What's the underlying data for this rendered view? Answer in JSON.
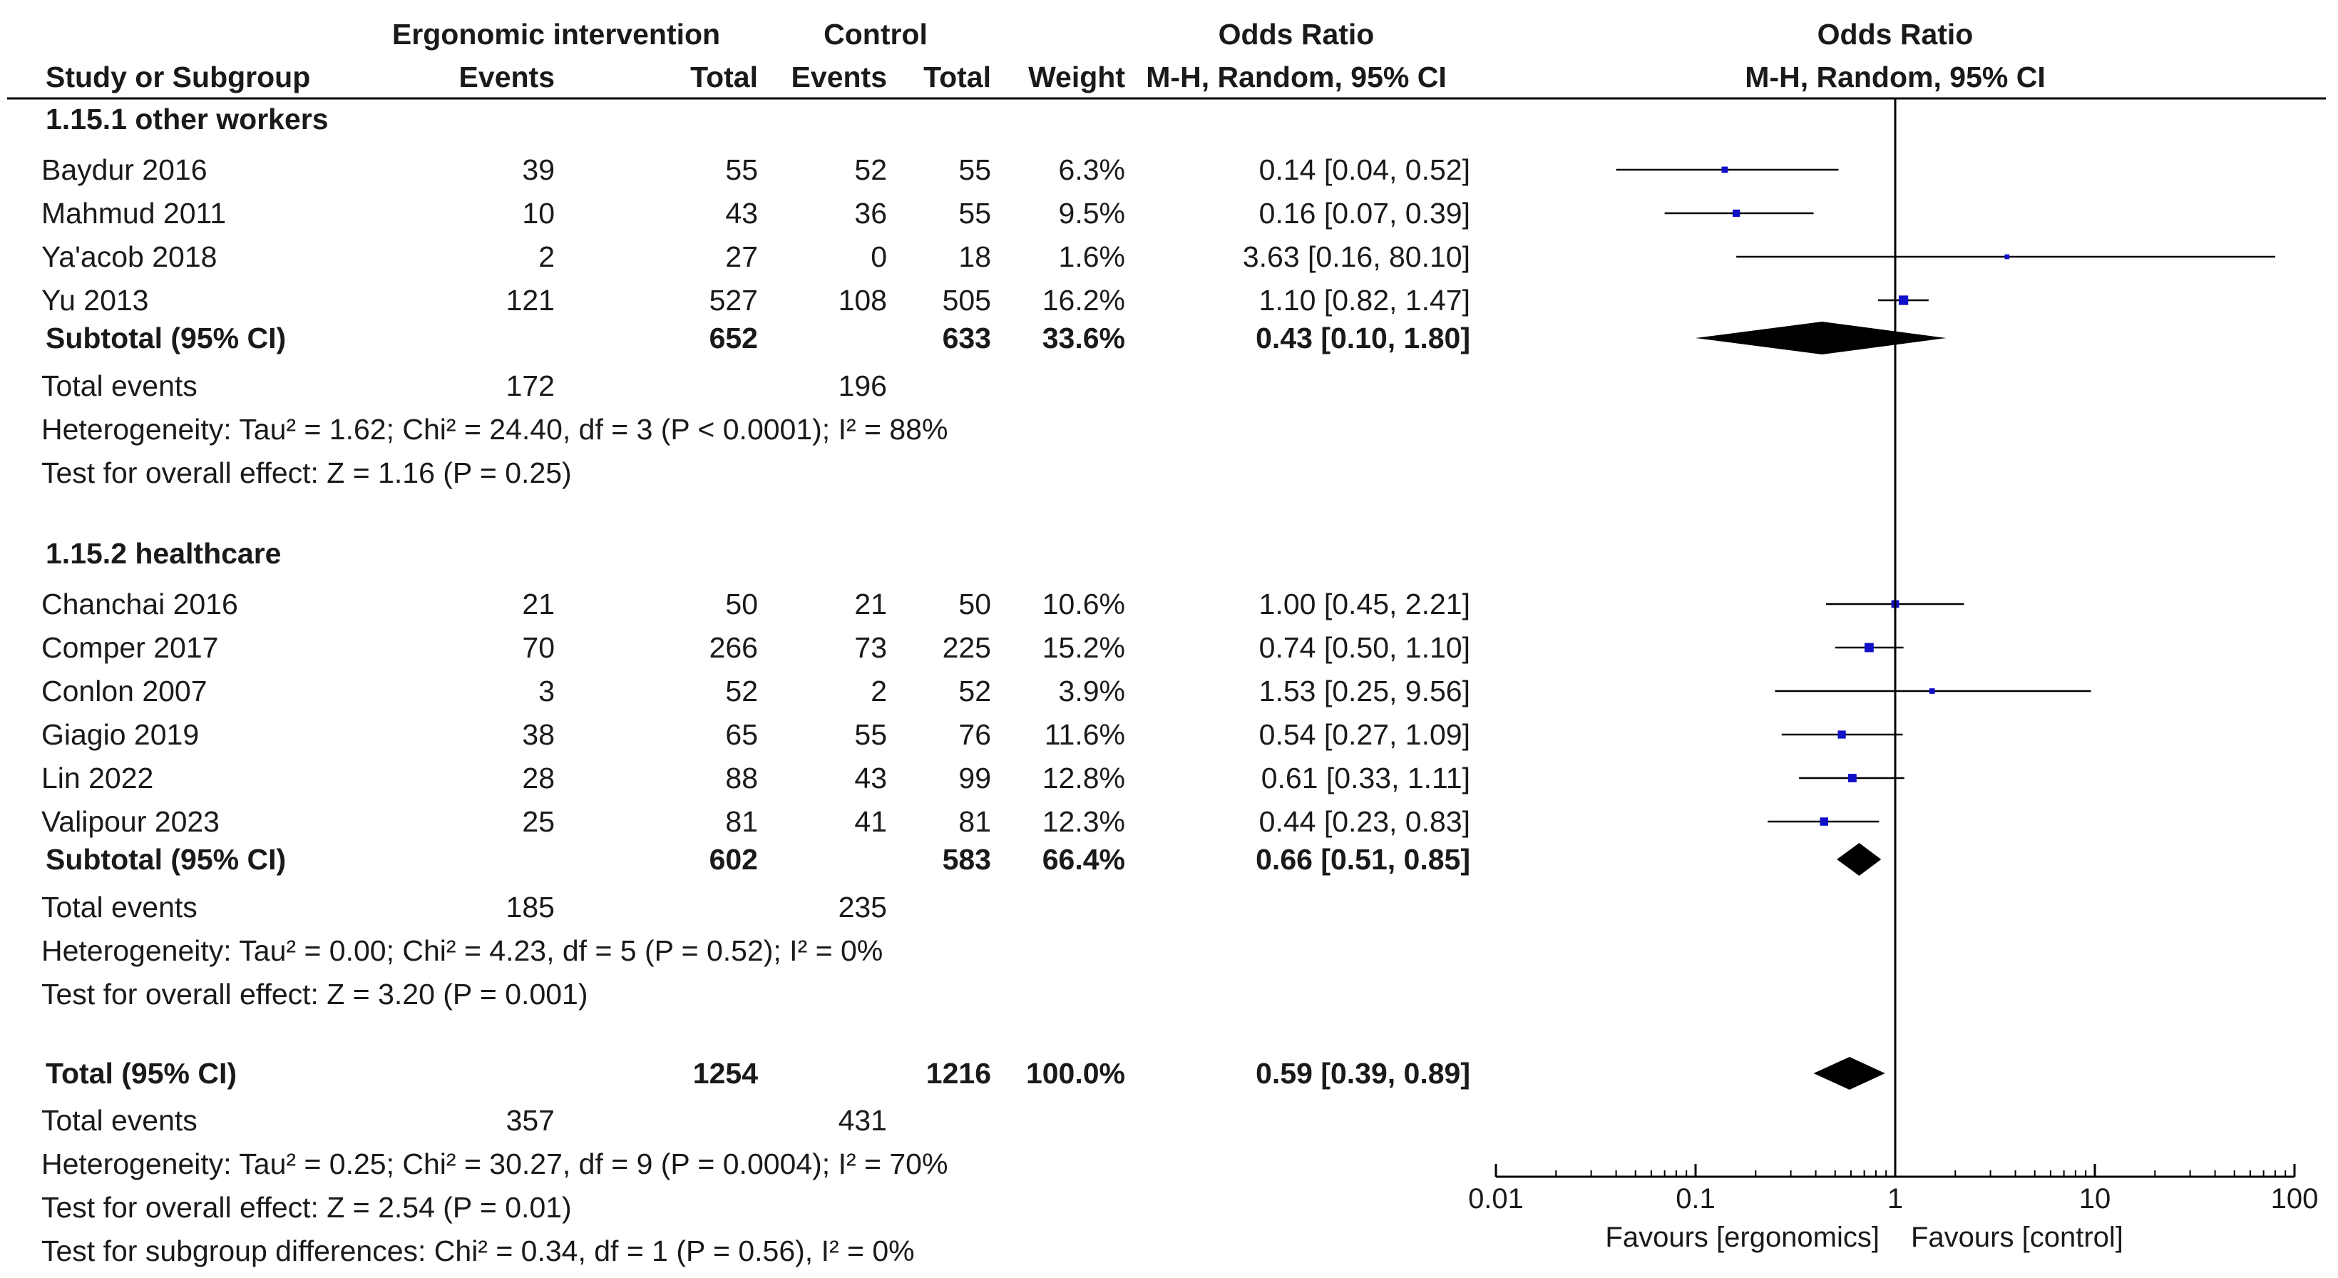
{
  "header": {
    "group_exp": "Ergonomic intervention",
    "group_ctrl": "Control",
    "or_title_table": "Odds Ratio",
    "or_title_plot": "Odds Ratio",
    "study_col": "Study or Subgroup",
    "events_exp": "Events",
    "total_exp": "Total",
    "events_ctrl": "Events",
    "total_ctrl": "Total",
    "weight": "Weight",
    "method_table": "M-H, Random, 95% CI",
    "method_plot": "M-H, Random, 95% CI"
  },
  "colors": {
    "study_marker": "#1010c8",
    "diamond": "#000000",
    "lines": "#000000"
  },
  "chart_data": {
    "type": "forest",
    "scale": "log",
    "xlim": [
      0.01,
      100
    ],
    "ticks": [
      {
        "value": 0.01,
        "label": "0.01"
      },
      {
        "value": 0.1,
        "label": "0.1"
      },
      {
        "value": 1,
        "label": "1"
      },
      {
        "value": 10,
        "label": "10"
      },
      {
        "value": 100,
        "label": "100"
      }
    ],
    "favours_left": "Favours [ergonomics]",
    "favours_right": "Favours [control]",
    "subgroups": [
      {
        "title": "1.15.1 other workers",
        "studies": [
          {
            "name": "Baydur 2016",
            "e_events": "39",
            "e_total": "55",
            "c_events": "52",
            "c_total": "55",
            "weight": "6.3%",
            "ci_text": "0.14 [0.04, 0.52]",
            "or": 0.14,
            "lo": 0.04,
            "hi": 0.52
          },
          {
            "name": "Mahmud 2011",
            "e_events": "10",
            "e_total": "43",
            "c_events": "36",
            "c_total": "55",
            "weight": "9.5%",
            "ci_text": "0.16 [0.07, 0.39]",
            "or": 0.16,
            "lo": 0.07,
            "hi": 0.39
          },
          {
            "name": "Ya'acob 2018",
            "e_events": "2",
            "e_total": "27",
            "c_events": "0",
            "c_total": "18",
            "weight": "1.6%",
            "ci_text": "3.63 [0.16, 80.10]",
            "or": 3.63,
            "lo": 0.16,
            "hi": 80.1
          },
          {
            "name": "Yu 2013",
            "e_events": "121",
            "e_total": "527",
            "c_events": "108",
            "c_total": "505",
            "weight": "16.2%",
            "ci_text": "1.10 [0.82, 1.47]",
            "or": 1.1,
            "lo": 0.82,
            "hi": 1.47
          }
        ],
        "subtotal": {
          "label": "Subtotal (95% CI)",
          "e_total": "652",
          "c_total": "633",
          "weight": "33.6%",
          "ci_text": "0.43 [0.10, 1.80]",
          "or": 0.43,
          "lo": 0.1,
          "hi": 1.8
        },
        "events": {
          "label": "Total events",
          "e": "172",
          "c": "196"
        },
        "heterogeneity": "Heterogeneity: Tau² = 1.62; Chi² = 24.40, df = 3 (P < 0.0001); I² = 88%",
        "overall": "Test for overall effect: Z = 1.16 (P = 0.25)"
      },
      {
        "title": "1.15.2 healthcare",
        "studies": [
          {
            "name": "Chanchai 2016",
            "e_events": "21",
            "e_total": "50",
            "c_events": "21",
            "c_total": "50",
            "weight": "10.6%",
            "ci_text": "1.00 [0.45, 2.21]",
            "or": 1.0,
            "lo": 0.45,
            "hi": 2.21
          },
          {
            "name": "Comper 2017",
            "e_events": "70",
            "e_total": "266",
            "c_events": "73",
            "c_total": "225",
            "weight": "15.2%",
            "ci_text": "0.74 [0.50, 1.10]",
            "or": 0.74,
            "lo": 0.5,
            "hi": 1.1
          },
          {
            "name": "Conlon 2007",
            "e_events": "3",
            "e_total": "52",
            "c_events": "2",
            "c_total": "52",
            "weight": "3.9%",
            "ci_text": "1.53 [0.25, 9.56]",
            "or": 1.53,
            "lo": 0.25,
            "hi": 9.56
          },
          {
            "name": "Giagio 2019",
            "e_events": "38",
            "e_total": "65",
            "c_events": "55",
            "c_total": "76",
            "weight": "11.6%",
            "ci_text": "0.54 [0.27, 1.09]",
            "or": 0.54,
            "lo": 0.27,
            "hi": 1.09
          },
          {
            "name": "Lin 2022",
            "e_events": "28",
            "e_total": "88",
            "c_events": "43",
            "c_total": "99",
            "weight": "12.8%",
            "ci_text": "0.61 [0.33, 1.11]",
            "or": 0.61,
            "lo": 0.33,
            "hi": 1.11
          },
          {
            "name": "Valipour 2023",
            "e_events": "25",
            "e_total": "81",
            "c_events": "41",
            "c_total": "81",
            "weight": "12.3%",
            "ci_text": "0.44 [0.23, 0.83]",
            "or": 0.44,
            "lo": 0.23,
            "hi": 0.83
          }
        ],
        "subtotal": {
          "label": "Subtotal (95% CI)",
          "e_total": "602",
          "c_total": "583",
          "weight": "66.4%",
          "ci_text": "0.66 [0.51, 0.85]",
          "or": 0.66,
          "lo": 0.51,
          "hi": 0.85
        },
        "events": {
          "label": "Total events",
          "e": "185",
          "c": "235"
        },
        "heterogeneity": "Heterogeneity: Tau² = 0.00; Chi² = 4.23, df = 5 (P = 0.52); I² = 0%",
        "overall": "Test for overall effect: Z = 3.20 (P = 0.001)"
      }
    ],
    "total": {
      "label": "Total (95% CI)",
      "e_total": "1254",
      "c_total": "1216",
      "weight": "100.0%",
      "ci_text": "0.59 [0.39, 0.89]",
      "or": 0.59,
      "lo": 0.39,
      "hi": 0.89
    },
    "total_events": {
      "label": "Total events",
      "e": "357",
      "c": "431"
    },
    "total_heterogeneity": "Heterogeneity: Tau² = 0.25; Chi² = 30.27, df = 9 (P = 0.0004); I² = 70%",
    "total_overall": "Test for overall effect: Z = 2.54 (P = 0.01)",
    "subgroup_diff": "Test for subgroup differences: Chi² = 0.34, df = 1 (P = 0.56), I² = 0%"
  }
}
